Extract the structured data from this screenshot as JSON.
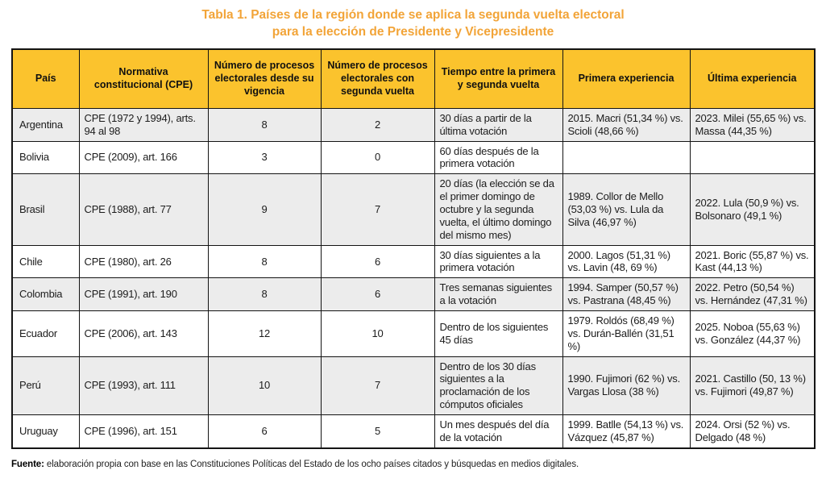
{
  "title": {
    "line1": "Tabla 1. Países de la región donde se aplica la segunda vuelta electoral",
    "line2": "para la elección de Presidente y Vicepresidente"
  },
  "colors": {
    "title_accent": "#f2a438",
    "header_background": "#fbc32d",
    "stripe_background": "#ececec",
    "border": "#141414"
  },
  "table": {
    "headers": {
      "pais": "País",
      "normativa": "Normativa constitucional (CPE)",
      "procesos": "Número de procesos electorales desde su vigencia",
      "segunda": "Número de procesos electorales con segunda vuelta",
      "tiempo": "Tiempo entre la primera y segunda vuelta",
      "primera": "Primera experiencia",
      "ultima": "Última experiencia"
    },
    "rows": [
      {
        "pais": "Argentina",
        "normativa": "CPE (1972 y 1994), arts. 94 al 98",
        "procesos": "8",
        "segunda": "2",
        "tiempo": "30 días a partir de la última votación",
        "primera": "2015. Macri (51,34 %) vs. Scioli (48,66 %)",
        "ultima": "2023. Milei (55,65 %) vs. Massa (44,35 %)"
      },
      {
        "pais": "Bolivia",
        "normativa": "CPE (2009), art. 166",
        "procesos": "3",
        "segunda": "0",
        "tiempo": "60 días después de la primera votación",
        "primera": "",
        "ultima": ""
      },
      {
        "pais": "Brasil",
        "normativa": "CPE (1988), art. 77",
        "procesos": "9",
        "segunda": "7",
        "tiempo": "20 días (la elección se da el primer domingo de octubre y la segunda vuelta, el último domingo del mismo mes)",
        "primera": "1989. Collor de Mello (53,03 %) vs. Lula da Silva (46,97 %)",
        "ultima": "2022. Lula (50,9 %) vs. Bolsonaro (49,1 %)"
      },
      {
        "pais": "Chile",
        "normativa": "CPE (1980), art. 26",
        "procesos": "8",
        "segunda": "6",
        "tiempo": "30 días siguientes a la primera votación",
        "primera": "2000. Lagos (51,31 %) vs. Lavin (48, 69 %)",
        "ultima": "2021. Boric (55,87 %) vs. Kast (44,13 %)"
      },
      {
        "pais": "Colombia",
        "normativa": "CPE (1991), art. 190",
        "procesos": "8",
        "segunda": "6",
        "tiempo": "Tres semanas siguientes a la votación",
        "primera": "1994. Samper (50,57 %) vs. Pastrana (48,45 %)",
        "ultima": "2022. Petro (50,54 %) vs. Hernández (47,31 %)"
      },
      {
        "pais": "Ecuador",
        "normativa": "CPE (2006), art. 143",
        "procesos": "12",
        "segunda": "10",
        "tiempo": "Dentro de los siguientes 45 días",
        "primera": "1979. Roldós (68,49 %) vs. Durán-Ballén (31,51 %)",
        "ultima": "2025. Noboa (55,63 %) vs. González (44,37 %)"
      },
      {
        "pais": "Perú",
        "normativa": "CPE (1993), art. 111",
        "procesos": "10",
        "segunda": "7",
        "tiempo": "Dentro de los 30 días siguientes a la proclamación de los cómputos oficiales",
        "primera": "1990. Fujimori (62 %) vs. Vargas Llosa (38 %)",
        "ultima": "2021. Castillo (50, 13 %) vs. Fujimori (49,87 %)"
      },
      {
        "pais": "Uruguay",
        "normativa": "CPE (1996), art. 151",
        "procesos": "6",
        "segunda": "5",
        "tiempo": "Un mes después del día de la votación",
        "primera": "1999. Batlle (54,13 %) vs. Vázquez (45,87 %)",
        "ultima": "2024. Orsi (52 %) vs. Delgado (48 %)"
      }
    ]
  },
  "footer": {
    "label": "Fuente:",
    "text": " elaboración propia con base en las Constituciones Políticas del Estado de los ocho países citados y búsquedas en medios digitales."
  }
}
